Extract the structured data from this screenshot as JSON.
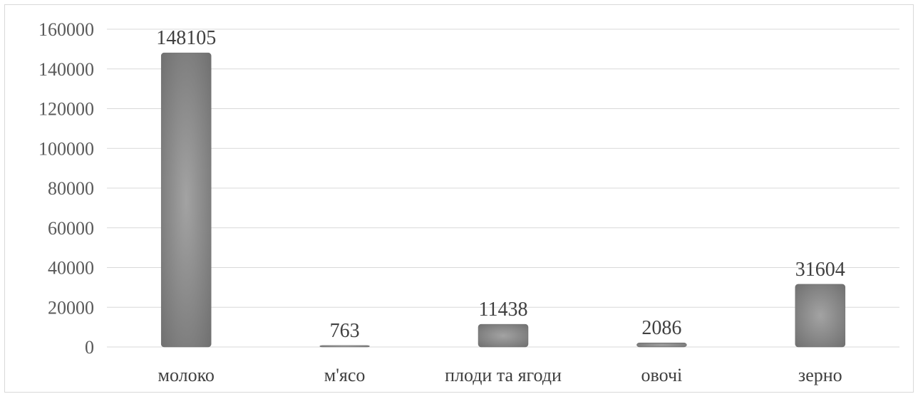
{
  "chart_data": {
    "type": "bar",
    "categories": [
      "молоко",
      "м'ясо",
      "плоди та ягоди",
      "овочі",
      "зерно"
    ],
    "values": [
      148105,
      763,
      11438,
      2086,
      31604
    ],
    "data_labels": [
      "148105",
      "763",
      "11438",
      "2086",
      "31604"
    ],
    "yticks": [
      0,
      20000,
      40000,
      60000,
      80000,
      100000,
      120000,
      140000,
      160000
    ],
    "ylim": [
      0,
      160000
    ],
    "grid": true,
    "legend": "none",
    "bar_color": "#8c8c8c",
    "bar_edge_color": "#6e6e6e",
    "gridline_color": "#d9d9d9"
  }
}
